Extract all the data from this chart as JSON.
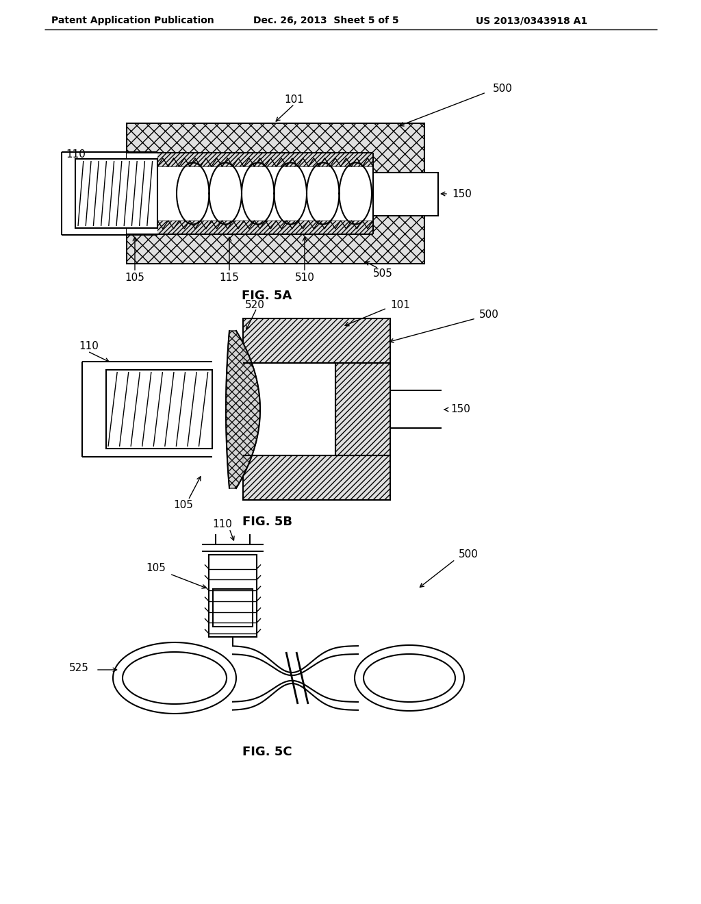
{
  "bg_color": "#ffffff",
  "line_color": "#000000",
  "header_left": "Patent Application Publication",
  "header_center": "Dec. 26, 2013  Sheet 5 of 5",
  "header_right": "US 2013/0343918 A1",
  "fig5a_label": "FIG. 5A",
  "fig5b_label": "FIG. 5B",
  "fig5c_label": "FIG. 5C",
  "labels": {
    "500_1": "500",
    "500_2": "500",
    "500_3": "500",
    "101_1": "101",
    "101_2": "101",
    "110_1": "110",
    "110_2": "110",
    "110_3": "110",
    "105_1": "105",
    "105_2": "105",
    "105_3": "105",
    "115": "115",
    "150_1": "150",
    "150_2": "150",
    "505": "505",
    "510": "510",
    "520": "520",
    "525": "525"
  }
}
